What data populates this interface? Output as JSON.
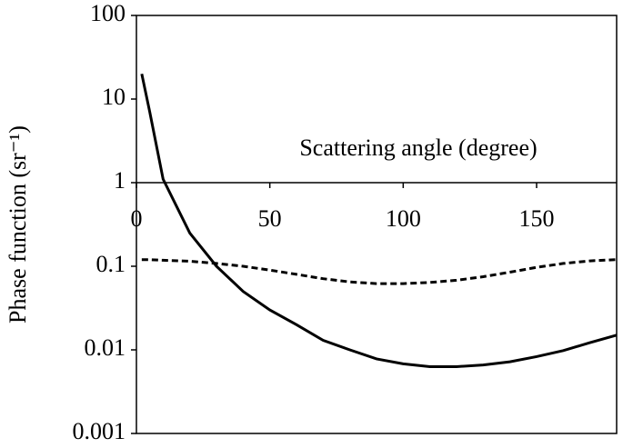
{
  "chart_data": {
    "type": "line",
    "xlabel": "Scattering angle (degree)",
    "ylabel": "Phase function (sr⁻¹)",
    "x": [
      2,
      5,
      10,
      20,
      30,
      40,
      50,
      60,
      70,
      80,
      90,
      100,
      110,
      120,
      130,
      140,
      150,
      160,
      170,
      180
    ],
    "series": [
      {
        "color": "#000000",
        "dash": "solid",
        "values": [
          20,
          7,
          1.1,
          0.25,
          0.1,
          0.05,
          0.03,
          0.02,
          0.013,
          0.01,
          0.0078,
          0.0068,
          0.0063,
          0.0063,
          0.0066,
          0.0072,
          0.0083,
          0.0098,
          0.0122,
          0.015
        ]
      },
      {
        "color": "#000000",
        "dash": "dashed",
        "values": [
          0.12,
          0.12,
          0.118,
          0.115,
          0.108,
          0.1,
          0.09,
          0.08,
          0.071,
          0.065,
          0.062,
          0.062,
          0.064,
          0.068,
          0.075,
          0.085,
          0.097,
          0.108,
          0.116,
          0.12
        ]
      }
    ],
    "xlim": [
      0,
      180
    ],
    "xticks": [
      0,
      50,
      100,
      150
    ],
    "ylim": [
      0.001,
      100
    ],
    "yticks": [
      0.001,
      0.01,
      0.1,
      1,
      10,
      100
    ],
    "ylog": true,
    "xaxis_crossing": 1,
    "grid": false
  }
}
